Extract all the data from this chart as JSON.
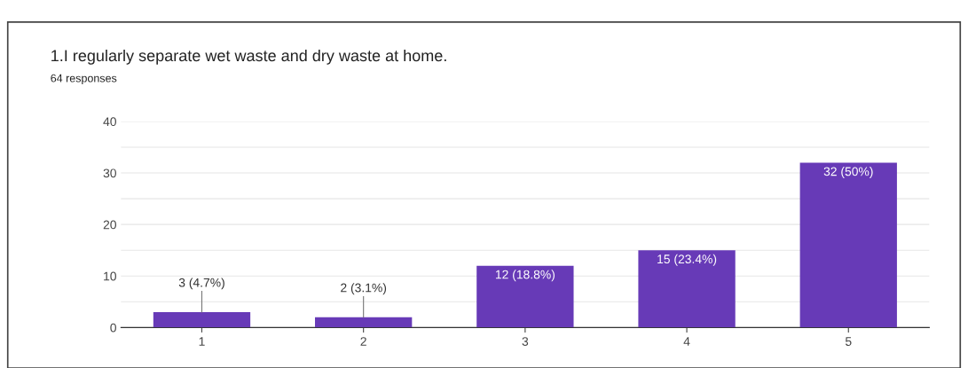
{
  "chart_data": {
    "type": "bar",
    "title": "1.I regularly separate wet waste and dry waste at home.",
    "subtitle": "64 responses",
    "categories": [
      "1",
      "2",
      "3",
      "4",
      "5"
    ],
    "values": [
      3,
      2,
      12,
      15,
      32
    ],
    "value_labels": [
      "3 (4.7%)",
      "2 (3.1%)",
      "12 (18.8%)",
      "15 (23.4%)",
      "32 (50%)"
    ],
    "color": "#673ab7",
    "ylim": [
      0,
      40
    ],
    "yticks": [
      0,
      {
        "value": 5,
        "label": null
      },
      10,
      {
        "value": 15,
        "label": null
      },
      20,
      {
        "value": 25,
        "label": null
      },
      30,
      {
        "value": 35,
        "label": null
      },
      40
    ],
    "grid": "y"
  }
}
